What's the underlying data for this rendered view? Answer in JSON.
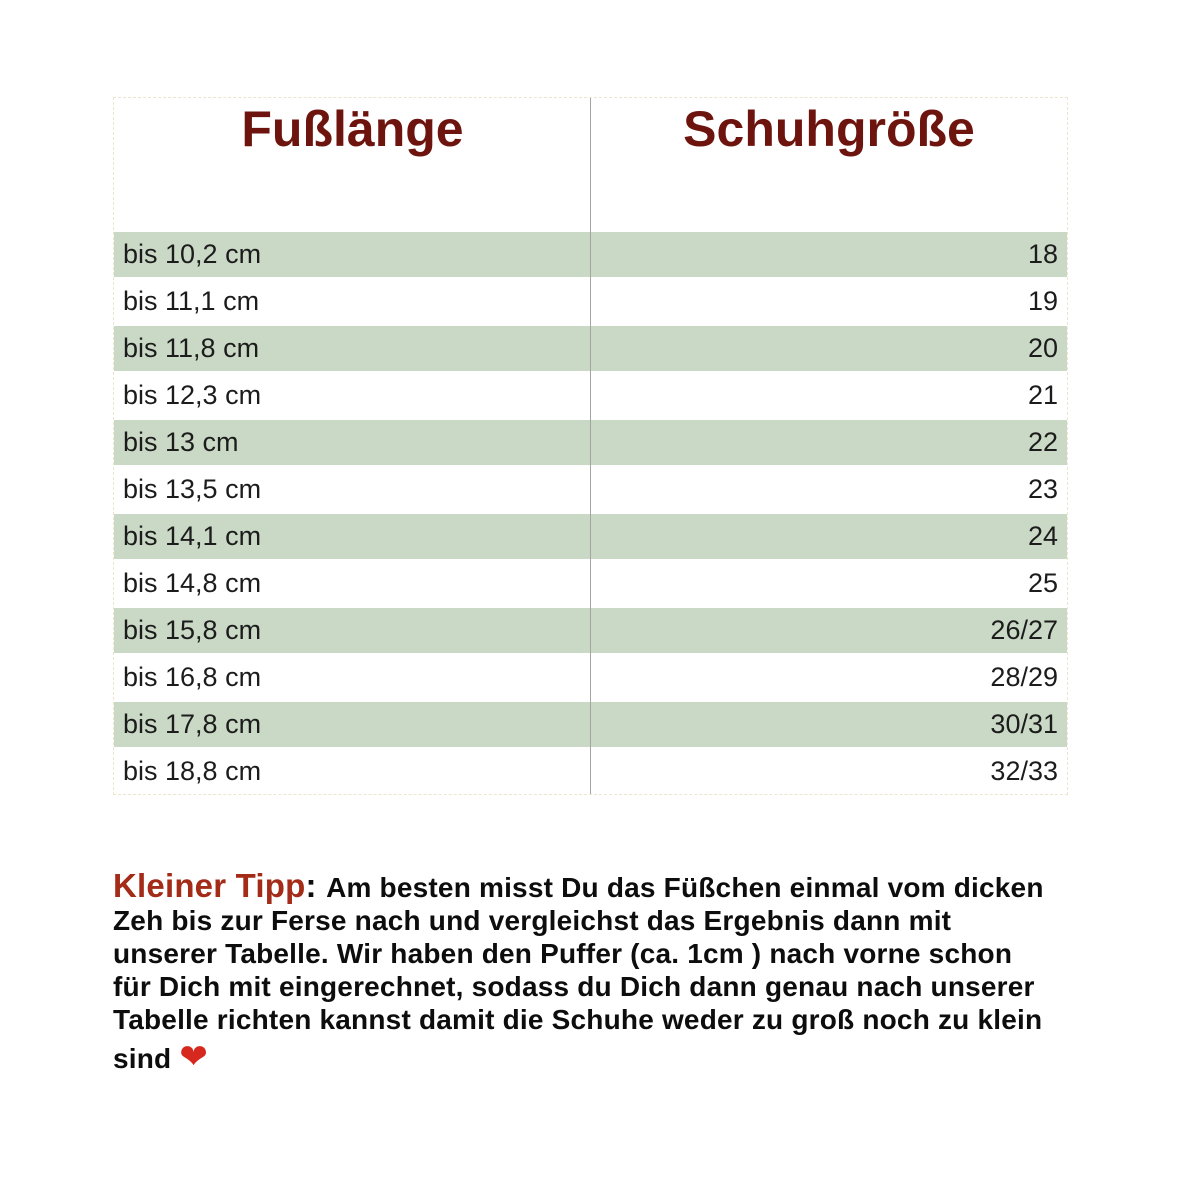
{
  "table": {
    "columns": [
      "Fußlänge",
      "Schuhgröße"
    ],
    "rows": [
      {
        "foot_length": "bis 10,2 cm",
        "shoe_size": "18",
        "highlighted": true
      },
      {
        "foot_length": "bis 11,1 cm",
        "shoe_size": "19",
        "highlighted": false
      },
      {
        "foot_length": "bis 11,8 cm",
        "shoe_size": "20",
        "highlighted": true
      },
      {
        "foot_length": "bis 12,3 cm",
        "shoe_size": "21",
        "highlighted": false
      },
      {
        "foot_length": "bis 13 cm",
        "shoe_size": "22",
        "highlighted": true
      },
      {
        "foot_length": "bis 13,5 cm",
        "shoe_size": "23",
        "highlighted": false
      },
      {
        "foot_length": "bis 14,1 cm",
        "shoe_size": "24",
        "highlighted": true
      },
      {
        "foot_length": "bis 14,8 cm",
        "shoe_size": "25",
        "highlighted": false
      },
      {
        "foot_length": "bis 15,8 cm",
        "shoe_size": "26/27",
        "highlighted": true
      },
      {
        "foot_length": "bis 16,8 cm",
        "shoe_size": "28/29",
        "highlighted": false
      },
      {
        "foot_length": "bis 17,8 cm",
        "shoe_size": "30/31",
        "highlighted": true
      },
      {
        "foot_length": "bis 18,8 cm",
        "shoe_size": "32/33",
        "highlighted": false
      }
    ]
  },
  "tip": {
    "label": "Kleiner Tipp",
    "colon": ": ",
    "text": "Am besten misst Du das Füßchen einmal vom dicken Zeh bis zur Ferse nach und vergleichst das Ergebnis dann mit unserer Tabelle. Wir haben den Puffer (ca. 1cm ) nach vorne schon für Dich mit eingerechnet, sodass du Dich dann genau nach unserer Tabelle richten kannst damit die Schuhe weder zu groß noch zu klein sind ",
    "heart_icon": "❤"
  },
  "colors": {
    "header_text": "#6d140e",
    "tip_label": "#a32b18",
    "row_highlight": "#cad9c5",
    "divider": "#a3a5a1",
    "table_border": "#ece6cf",
    "heart": "#d6281e"
  },
  "chart_data": {
    "type": "table",
    "columns": [
      "Fußlänge",
      "Schuhgröße"
    ],
    "rows": [
      [
        "bis 10,2 cm",
        "18"
      ],
      [
        "bis 11,1 cm",
        "19"
      ],
      [
        "bis 11,8 cm",
        "20"
      ],
      [
        "bis 12,3 cm",
        "21"
      ],
      [
        "bis 13 cm",
        "22"
      ],
      [
        "bis 13,5 cm",
        "23"
      ],
      [
        "bis 14,1 cm",
        "24"
      ],
      [
        "bis 14,8 cm",
        "25"
      ],
      [
        "bis 15,8 cm",
        "26/27"
      ],
      [
        "bis 16,8 cm",
        "28/29"
      ],
      [
        "bis 17,8 cm",
        "30/31"
      ],
      [
        "bis 18,8 cm",
        "32/33"
      ]
    ]
  }
}
